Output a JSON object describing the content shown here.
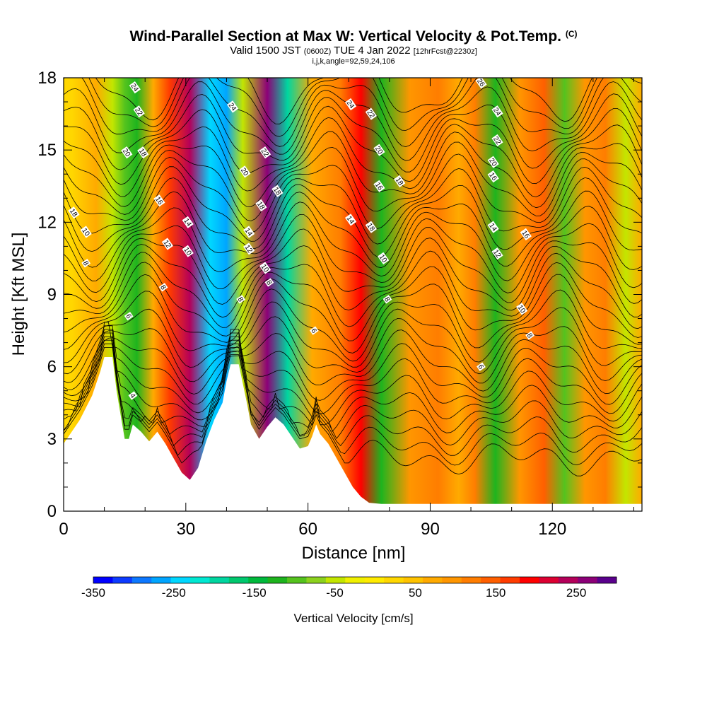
{
  "title": {
    "main": "Wind-Parallel Section at Max W: Vertical Velocity & Pot.Temp.",
    "copyright": "(C)",
    "valid_prefix": "Valid 1500 JST",
    "utc": "(0600Z)",
    "valid_date": "TUE 4 Jan 2022",
    "forecast": "[12hrFcst@2230z]",
    "indices": "i,j,k,angle=92,59,24,106"
  },
  "chart_data": {
    "type": "heatmap",
    "xlabel": "Distance [nm]",
    "ylabel": "Height [Kft MSL]",
    "xlim": [
      0,
      142
    ],
    "ylim": [
      0,
      18
    ],
    "x_ticks": [
      0,
      30,
      60,
      90,
      120
    ],
    "y_ticks": [
      0,
      3,
      6,
      9,
      12,
      15,
      18
    ],
    "colorbar": {
      "label": "Vertical Velocity [cm/s]",
      "range": [
        -350,
        300
      ],
      "tick_values": [
        -350,
        -250,
        -150,
        -50,
        50,
        150,
        250
      ],
      "tick_labels": [
        "-350",
        "-250",
        "-150",
        "-50",
        "50",
        "150",
        "250"
      ],
      "colors": [
        "#0000ff",
        "#0d3bff",
        "#0d78ff",
        "#00a5ff",
        "#00d7ff",
        "#00e8d2",
        "#00d6a0",
        "#00c86e",
        "#00b93c",
        "#1eb41e",
        "#55c31e",
        "#8cd21e",
        "#c3e600",
        "#f0f000",
        "#ffeb00",
        "#ffd700",
        "#ffc300",
        "#ffaa00",
        "#ff9600",
        "#ff7d00",
        "#ff5f00",
        "#ff3c00",
        "#ff0000",
        "#dc0032",
        "#b4005a",
        "#8c0078",
        "#5a008c"
      ]
    },
    "vertical_velocity_columns": [
      {
        "x": 2,
        "w": 30
      },
      {
        "x": 8,
        "w": 60
      },
      {
        "x": 12,
        "w": -50
      },
      {
        "x": 15,
        "w": -90
      },
      {
        "x": 18,
        "w": -130
      },
      {
        "x": 22,
        "w": 80
      },
      {
        "x": 26,
        "w": 170
      },
      {
        "x": 31,
        "w": 250
      },
      {
        "x": 36,
        "w": -230
      },
      {
        "x": 40,
        "w": -260
      },
      {
        "x": 44,
        "w": -60
      },
      {
        "x": 50,
        "w": 270
      },
      {
        "x": 55,
        "w": -200
      },
      {
        "x": 61,
        "w": 60
      },
      {
        "x": 68,
        "w": 110
      },
      {
        "x": 73,
        "w": 190
      },
      {
        "x": 78,
        "w": -110
      },
      {
        "x": 85,
        "w": 90
      },
      {
        "x": 92,
        "w": 110
      },
      {
        "x": 97,
        "w": 60
      },
      {
        "x": 101,
        "w": 120
      },
      {
        "x": 106,
        "w": -130
      },
      {
        "x": 112,
        "w": 100
      },
      {
        "x": 118,
        "w": 140
      },
      {
        "x": 123,
        "w": -100
      },
      {
        "x": 128,
        "w": 90
      },
      {
        "x": 133,
        "w": 120
      },
      {
        "x": 138,
        "w": -60
      },
      {
        "x": 142,
        "w": 80
      }
    ],
    "terrain": [
      [
        0,
        2.8
      ],
      [
        4,
        3.8
      ],
      [
        7,
        4.8
      ],
      [
        9,
        5.8
      ],
      [
        10,
        6.4
      ],
      [
        12,
        6.4
      ],
      [
        13,
        5.0
      ],
      [
        14,
        4.0
      ],
      [
        15,
        3.0
      ],
      [
        16,
        3.0
      ],
      [
        17,
        3.6
      ],
      [
        19,
        3.3
      ],
      [
        21,
        2.9
      ],
      [
        23,
        3.3
      ],
      [
        25,
        2.8
      ],
      [
        27,
        2.2
      ],
      [
        29,
        1.6
      ],
      [
        31,
        1.3
      ],
      [
        33,
        1.8
      ],
      [
        35,
        2.9
      ],
      [
        37,
        3.8
      ],
      [
        39,
        4.5
      ],
      [
        40,
        5.4
      ],
      [
        41,
        6.1
      ],
      [
        43,
        6.1
      ],
      [
        45,
        4.5
      ],
      [
        46,
        3.6
      ],
      [
        48,
        3.0
      ],
      [
        50,
        3.5
      ],
      [
        52,
        3.9
      ],
      [
        54,
        3.6
      ],
      [
        56,
        3.1
      ],
      [
        58,
        2.6
      ],
      [
        60,
        2.7
      ],
      [
        61,
        3.1
      ],
      [
        62,
        3.6
      ],
      [
        63,
        3.2
      ],
      [
        65,
        2.8
      ],
      [
        67,
        2.2
      ],
      [
        69,
        1.6
      ],
      [
        71,
        1.0
      ],
      [
        73,
        0.6
      ],
      [
        75,
        0.35
      ],
      [
        78,
        0.3
      ],
      [
        142,
        0.3
      ]
    ],
    "pot_temp_contour_labels": [
      "4",
      "6",
      "8",
      "10",
      "12",
      "14",
      "16",
      "18",
      "20",
      "22",
      "24",
      "26"
    ]
  }
}
